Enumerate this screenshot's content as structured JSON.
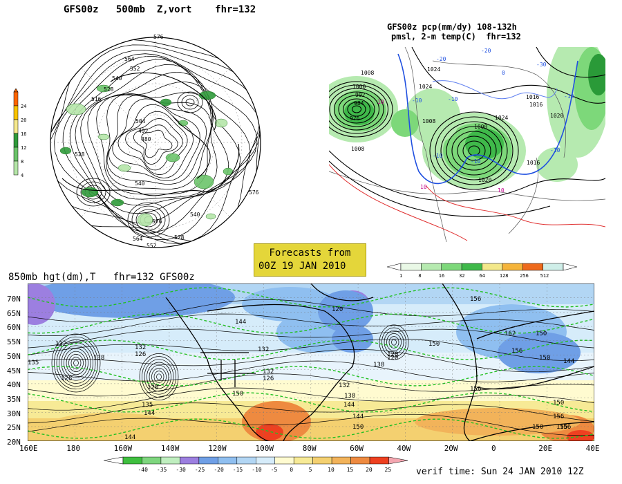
{
  "panel_500mb": {
    "title": "GFS00z   500mb  Z,vort    fhr=132",
    "scale_ticks": [
      "24",
      "20",
      "16",
      "12",
      "8",
      "4"
    ],
    "height_labels": [
      "576",
      "564",
      "552",
      "540",
      "528",
      "516",
      "504",
      "492",
      "480",
      "576",
      "540",
      "528",
      "552",
      "564",
      "576",
      "528",
      "540"
    ],
    "colors": {
      "fill_light": "#b5e6a8",
      "fill_mid": "#6cc46a",
      "fill_dark": "#2f9a3a",
      "accent_top": "#ff6600"
    }
  },
  "panel_precip": {
    "title_line1": "GFS00z pcp(mm/dy) 108-132h",
    "title_line2": "pmsl, 2-m temp(C)  fhr=132",
    "pressure_labels": [
      "1008",
      "1000",
      "992",
      "984",
      "976",
      "1008",
      "1024",
      "1024",
      "1008",
      "1000",
      "1016",
      "1024",
      "1020",
      "1016",
      "1016",
      "1020"
    ],
    "temp_labels": [
      "-10",
      "-20",
      "-10",
      "-10",
      "10",
      "10",
      "10",
      "-10",
      "-20",
      "0",
      "-30",
      "-10",
      "-10"
    ],
    "scale_ticks": [
      "1",
      "8",
      "16",
      "32",
      "64",
      "128",
      "256",
      "512"
    ],
    "scale_colors": [
      "#e9f8e6",
      "#b6eab0",
      "#7dd87a",
      "#3fb94a",
      "#f3e88a",
      "#f5b43a",
      "#ee6a1c",
      "#cfeee8"
    ]
  },
  "forecast_box": {
    "line1": "Forecasts from",
    "line2": "00Z 19 JAN 2010"
  },
  "panel_850mb": {
    "title": "850mb hgt(dm),T   fhr=132 GFS00z",
    "lat_labels": [
      "70N",
      "65N",
      "60N",
      "55N",
      "50N",
      "45N",
      "40N",
      "35N",
      "30N",
      "25N",
      "20N"
    ],
    "lon_labels": [
      "160E",
      "180",
      "160W",
      "140W",
      "120W",
      "100W",
      "80W",
      "60W",
      "40W",
      "20W",
      "0",
      "20E",
      "40E"
    ],
    "height_labels": [
      "132",
      "138",
      "126",
      "135",
      "132",
      "126",
      "120",
      "135",
      "144",
      "144",
      "144",
      "150",
      "132",
      "126",
      "132",
      "138",
      "132",
      "138",
      "144",
      "144",
      "150",
      "120",
      "150",
      "156",
      "156",
      "150",
      "156",
      "150",
      "162",
      "156",
      "144",
      "150",
      "150",
      "156",
      "156",
      "120",
      "120"
    ],
    "scale_ticks": [
      "-40",
      "-35",
      "-30",
      "-25",
      "-20",
      "-15",
      "-10",
      "-5",
      "0",
      "5",
      "10",
      "15",
      "20",
      "25"
    ],
    "scale_colors": [
      "#3fbf3f",
      "#7ed67e",
      "#bfeebf",
      "#9c7fe0",
      "#6f9fe6",
      "#8fbff0",
      "#b2d6f4",
      "#d6ecfa",
      "#fffbd0",
      "#f7ea96",
      "#f4d070",
      "#f2b35a",
      "#ee8a40",
      "#ee4020",
      "#f4a6b0"
    ]
  },
  "verif_time": "verif time: Sun 24 JAN 2010 12Z"
}
